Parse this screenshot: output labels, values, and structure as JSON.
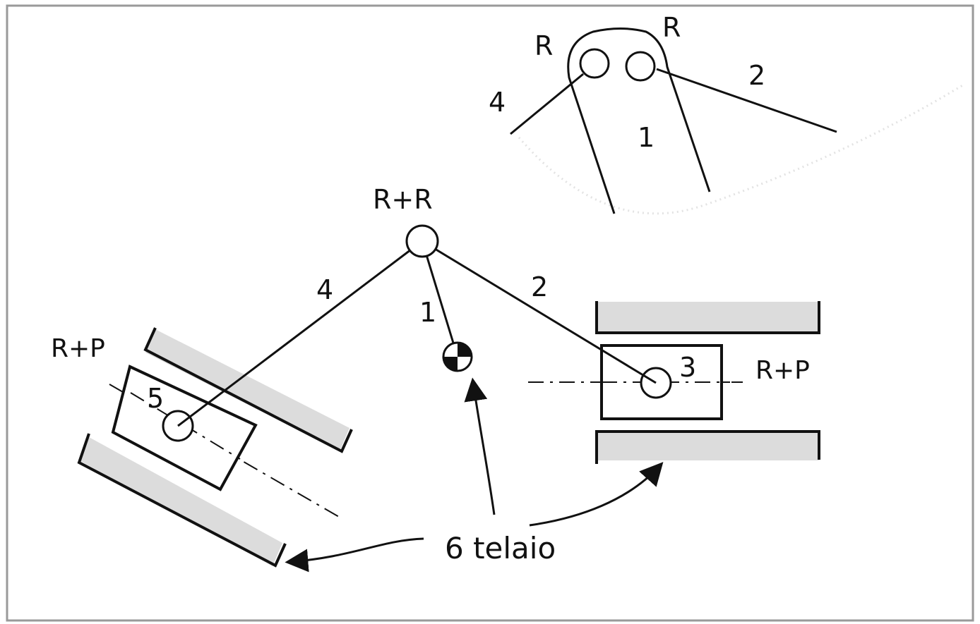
{
  "labels": {
    "top_r_left": "R",
    "top_r_right": "R",
    "top_link_4": "4",
    "top_link_2": "2",
    "top_link_1": "1",
    "joint_rr": "R+R",
    "link_4": "4",
    "link_2": "2",
    "link_1": "1",
    "left_rp": "R+P",
    "right_rp": "R+P",
    "slider_5": "5",
    "slider_3": "3",
    "frame": "6 telaio"
  },
  "colors": {
    "ink": "#111111",
    "guide_fill": "#dcdcdc",
    "frame_border": "#9a9a9a",
    "background": "#ffffff"
  },
  "icons": {
    "ground_pivot": "ground-symbol-icon"
  }
}
